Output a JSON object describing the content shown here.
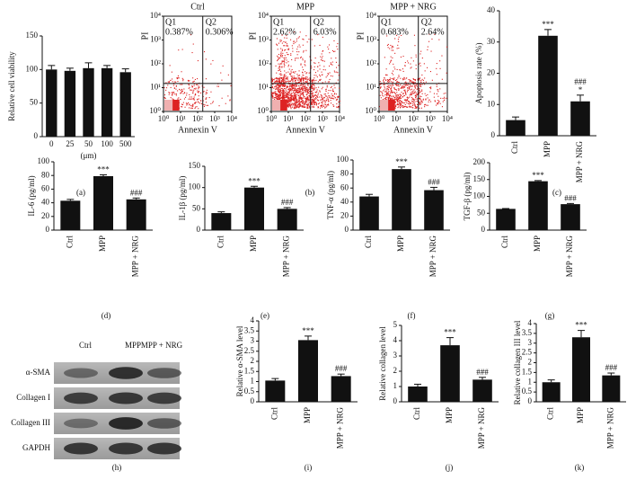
{
  "panel_labels": [
    "(a)",
    "(b)",
    "(c)",
    "(d)",
    "(e)",
    "(f)",
    "(g)",
    "(h)",
    "(i)",
    "(j)",
    "(k)"
  ],
  "blot": {
    "columns": [
      "Ctrl",
      "MPP",
      "MPP + NRG"
    ],
    "rows": [
      "α-SMA",
      "Collagen I",
      "Collagen III",
      "GAPDH"
    ]
  },
  "chart_data": [
    {
      "type": "bar",
      "ylabel": "Relative cell viability",
      "xlabel": "(μm)",
      "categories": [
        "0",
        "25",
        "50",
        "100",
        "500"
      ],
      "values": [
        100,
        98,
        102,
        102,
        96
      ],
      "errors": [
        6,
        4,
        8,
        4,
        5
      ],
      "ylim": [
        0,
        150
      ],
      "yticks": [
        0,
        50,
        100,
        150
      ],
      "color": "#111111"
    },
    {
      "type": "flow",
      "title": "Ctrl",
      "xlabel": "Annexin V",
      "ylabel": "PI",
      "log": true,
      "xlim": [
        1,
        10000
      ],
      "ylim": [
        1,
        10000
      ],
      "xticks": [
        {
          "value": 1,
          "label": "10⁰"
        },
        {
          "value": 10,
          "label": "10¹"
        },
        {
          "value": 100,
          "label": "10²"
        },
        {
          "value": 1000,
          "label": "10³"
        },
        {
          "value": 10000,
          "label": "10⁴"
        }
      ],
      "yticks": [
        {
          "value": 1,
          "label": "10⁰"
        },
        {
          "value": 10,
          "label": "10¹"
        },
        {
          "value": 100,
          "label": "10²"
        },
        {
          "value": 1000,
          "label": "10³"
        },
        {
          "value": 10000,
          "label": "10⁴"
        }
      ],
      "gate": {
        "x": 200,
        "y": 15
      },
      "quadrants": [
        {
          "name": "Q1",
          "value": 0.387,
          "label": "0.387%"
        },
        {
          "name": "Q2",
          "value": 0.306,
          "label": "0.306%"
        }
      ],
      "color": "#dd2222"
    },
    {
      "type": "flow",
      "title": "MPP",
      "xlabel": "Annexin V",
      "ylabel": "PI",
      "log": true,
      "xlim": [
        1,
        10000
      ],
      "ylim": [
        1,
        10000
      ],
      "xticks": [
        {
          "value": 1,
          "label": "10⁰"
        },
        {
          "value": 10,
          "label": "10¹"
        },
        {
          "value": 100,
          "label": "10²"
        },
        {
          "value": 1000,
          "label": "10³"
        },
        {
          "value": 10000,
          "label": "10⁴"
        }
      ],
      "yticks": [
        {
          "value": 1,
          "label": "10⁰"
        },
        {
          "value": 10,
          "label": "10¹"
        },
        {
          "value": 100,
          "label": "10²"
        },
        {
          "value": 1000,
          "label": "10³"
        },
        {
          "value": 10000,
          "label": "10⁴"
        }
      ],
      "gate": {
        "x": 200,
        "y": 15
      },
      "quadrants": [
        {
          "name": "Q1",
          "value": 2.62,
          "label": "2.62%"
        },
        {
          "name": "Q2",
          "value": 6.03,
          "label": "6.03%"
        }
      ],
      "color": "#dd2222"
    },
    {
      "type": "flow",
      "title": "MPP + NRG",
      "xlabel": "Annexin V",
      "ylabel": "PI",
      "log": true,
      "xlim": [
        1,
        10000
      ],
      "ylim": [
        1,
        10000
      ],
      "xticks": [
        {
          "value": 1,
          "label": "10⁰"
        },
        {
          "value": 10,
          "label": "10¹"
        },
        {
          "value": 100,
          "label": "10²"
        },
        {
          "value": 1000,
          "label": "10³"
        },
        {
          "value": 10000,
          "label": "10⁴"
        }
      ],
      "yticks": [
        {
          "value": 1,
          "label": "10⁰"
        },
        {
          "value": 10,
          "label": "10¹"
        },
        {
          "value": 100,
          "label": "10²"
        },
        {
          "value": 1000,
          "label": "10³"
        },
        {
          "value": 10000,
          "label": "10⁴"
        }
      ],
      "gate": {
        "x": 200,
        "y": 15
      },
      "quadrants": [
        {
          "name": "Q1",
          "value": 0.683,
          "label": "0.683%"
        },
        {
          "name": "Q2",
          "value": 2.64,
          "label": "2.64%"
        }
      ],
      "color": "#dd2222"
    },
    {
      "type": "bar",
      "ylabel": "Apoptosis rate (%)",
      "categories": [
        "Ctrl",
        "MPP",
        "MPP + NRG"
      ],
      "values": [
        5,
        32,
        11
      ],
      "errors": [
        1,
        2,
        2
      ],
      "ylim": [
        0,
        40
      ],
      "yticks": [
        0,
        10,
        20,
        30,
        40
      ],
      "color": "#111111",
      "annotations": [
        {
          "text": "***",
          "x": "MPP"
        },
        {
          "text": "*",
          "x": "MPP + NRG"
        },
        {
          "text": "###",
          "x": "MPP + NRG"
        }
      ]
    },
    {
      "type": "bar",
      "ylabel": "IL-6 (pg/ml)",
      "categories": [
        "Ctrl",
        "MPP",
        "MPP + NRG"
      ],
      "values": [
        43,
        79,
        45
      ],
      "errors": [
        2,
        2,
        2
      ],
      "ylim": [
        0,
        100
      ],
      "yticks": [
        0,
        20,
        40,
        60,
        80,
        100
      ],
      "color": "#111111",
      "annotations": [
        {
          "text": "***",
          "x": "MPP"
        },
        {
          "text": "###",
          "x": "MPP + NRG"
        }
      ]
    },
    {
      "type": "bar",
      "ylabel": "IL-1β (pg/ml)",
      "categories": [
        "Ctrl",
        "MPP",
        "MPP + NRG"
      ],
      "values": [
        40,
        100,
        50
      ],
      "errors": [
        3,
        3,
        3
      ],
      "ylim": [
        0,
        150
      ],
      "yticks": [
        0,
        50,
        100,
        150
      ],
      "color": "#111111",
      "annotations": [
        {
          "text": "***",
          "x": "MPP"
        },
        {
          "text": "###",
          "x": "MPP + NRG"
        }
      ]
    },
    {
      "type": "bar",
      "ylabel": "TNF-α (pg/ml)",
      "categories": [
        "Ctrl",
        "MPP",
        "MPP + NRG"
      ],
      "values": [
        48,
        87,
        57
      ],
      "errors": [
        3,
        3,
        4
      ],
      "ylim": [
        0,
        100
      ],
      "yticks": [
        0,
        20,
        40,
        60,
        80,
        100
      ],
      "color": "#111111",
      "annotations": [
        {
          "text": "***",
          "x": "MPP"
        },
        {
          "text": "###",
          "x": "MPP + NRG"
        }
      ]
    },
    {
      "type": "bar",
      "ylabel": "TGF-β (pg/ml)",
      "categories": [
        "Ctrl",
        "MPP",
        "MPP + NRG"
      ],
      "values": [
        63,
        145,
        77
      ],
      "errors": [
        1,
        2,
        2
      ],
      "ylim": [
        0,
        200
      ],
      "yticks": [
        0,
        50,
        100,
        150,
        200
      ],
      "color": "#111111",
      "annotations": [
        {
          "text": "***",
          "x": "MPP"
        },
        {
          "text": "###",
          "x": "MPP + NRG"
        }
      ]
    },
    {
      "type": "bar",
      "ylabel": "Relative α-SMA level",
      "categories": [
        "Ctrl",
        "MPP",
        "MPP + NRG"
      ],
      "values": [
        1.05,
        3.05,
        1.27
      ],
      "errors": [
        0.1,
        0.2,
        0.1
      ],
      "ylim": [
        0,
        4
      ],
      "yticks": [
        0,
        0.5,
        1,
        1.5,
        2,
        2.5,
        3,
        3.5,
        4
      ],
      "color": "#111111",
      "annotations": [
        {
          "text": "***",
          "x": "MPP"
        },
        {
          "text": "###",
          "x": "MPP + NRG"
        }
      ]
    },
    {
      "type": "bar",
      "ylabel": "Relative collagen level",
      "categories": [
        "Ctrl",
        "MPP",
        "MPP + NRG"
      ],
      "values": [
        1.0,
        3.7,
        1.45
      ],
      "errors": [
        0.15,
        0.5,
        0.15
      ],
      "ylim": [
        0,
        5
      ],
      "yticks": [
        0,
        1,
        2,
        3,
        4,
        5
      ],
      "color": "#111111",
      "annotations": [
        {
          "text": "***",
          "x": "MPP"
        },
        {
          "text": "###",
          "x": "MPP + NRG"
        }
      ]
    },
    {
      "type": "bar",
      "ylabel": "Relative collagen III level",
      "categories": [
        "Ctrl",
        "MPP",
        "MPP + NRG"
      ],
      "values": [
        1.0,
        3.3,
        1.35
      ],
      "errors": [
        0.12,
        0.35,
        0.12
      ],
      "ylim": [
        0,
        4
      ],
      "yticks": [
        0,
        0.5,
        1,
        1.5,
        2,
        2.5,
        3,
        3.5,
        4
      ],
      "color": "#111111",
      "annotations": [
        {
          "text": "***",
          "x": "MPP"
        },
        {
          "text": "###",
          "x": "MPP + NRG"
        }
      ]
    }
  ]
}
